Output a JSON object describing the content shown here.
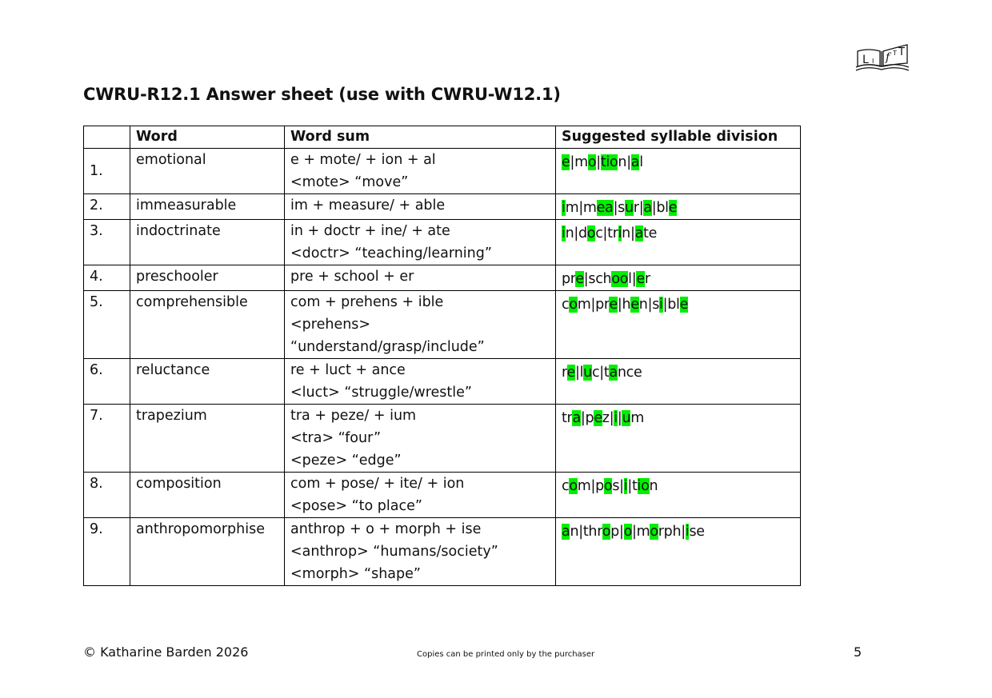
{
  "title": "CWRU-R12.1 Answer sheet (use with CWRU-W12.1)",
  "logo": {
    "icon": "lift-book-logo",
    "text_left": "L I",
    "text_right": "f T T"
  },
  "table": {
    "headers": [
      "",
      "Word",
      "Word sum",
      "Suggested syllable division"
    ],
    "rows": [
      {
        "num": "1.",
        "word": "emotional",
        "sum": [
          "e + mote/ + ion + al",
          "<mote> “move”"
        ],
        "syllables": [
          [
            "e",
            "v"
          ],
          [
            "|",
            ""
          ],
          [
            "m",
            ""
          ],
          [
            "o",
            "v"
          ],
          [
            "|",
            ""
          ],
          [
            "tio",
            "v"
          ],
          [
            "n",
            ""
          ],
          [
            "|",
            ""
          ],
          [
            "a",
            "v"
          ],
          [
            "l",
            ""
          ]
        ]
      },
      {
        "num": "2.",
        "word": "immeasurable",
        "sum": [
          "im + measure/ + able"
        ],
        "syllables": [
          [
            "i",
            "v"
          ],
          [
            "m",
            ""
          ],
          [
            "|",
            ""
          ],
          [
            "m",
            ""
          ],
          [
            "ea",
            "v"
          ],
          [
            "|",
            ""
          ],
          [
            "s",
            ""
          ],
          [
            "u",
            "v"
          ],
          [
            "r",
            ""
          ],
          [
            "|",
            ""
          ],
          [
            "a",
            "v"
          ],
          [
            "|",
            ""
          ],
          [
            "bl",
            ""
          ],
          [
            "e",
            "v"
          ]
        ]
      },
      {
        "num": "3.",
        "word": "indoctrinate",
        "sum": [
          "in + doctr + ine/ + ate",
          "<doctr> “teaching/learning”"
        ],
        "syllables": [
          [
            "i",
            "v"
          ],
          [
            "n",
            ""
          ],
          [
            "|",
            ""
          ],
          [
            "d",
            ""
          ],
          [
            "o",
            "v"
          ],
          [
            "c",
            ""
          ],
          [
            "|",
            ""
          ],
          [
            "tr",
            ""
          ],
          [
            "i",
            "v"
          ],
          [
            "n",
            ""
          ],
          [
            "|",
            ""
          ],
          [
            "a",
            "v"
          ],
          [
            "te",
            ""
          ]
        ]
      },
      {
        "num": "4.",
        "word": "preschooler",
        "sum": [
          "pre + school + er"
        ],
        "syllables": [
          [
            "pr",
            ""
          ],
          [
            "e",
            "v"
          ],
          [
            "|",
            ""
          ],
          [
            "sch",
            ""
          ],
          [
            "oo",
            "v"
          ],
          [
            "l",
            ""
          ],
          [
            "|",
            ""
          ],
          [
            "e",
            "v"
          ],
          [
            "r",
            ""
          ]
        ]
      },
      {
        "num": "5.",
        "word": "comprehensible",
        "sum": [
          "com + prehens + ible",
          "<prehens>",
          "“understand/grasp/include”"
        ],
        "syllables": [
          [
            "c",
            ""
          ],
          [
            "o",
            "v"
          ],
          [
            "m",
            ""
          ],
          [
            "|",
            ""
          ],
          [
            "pr",
            ""
          ],
          [
            "e",
            "v"
          ],
          [
            "|",
            ""
          ],
          [
            "h",
            ""
          ],
          [
            "e",
            "v"
          ],
          [
            "n",
            ""
          ],
          [
            "|",
            ""
          ],
          [
            "s",
            ""
          ],
          [
            "i",
            "v"
          ],
          [
            "|",
            ""
          ],
          [
            "bl",
            ""
          ],
          [
            "e",
            "v"
          ]
        ]
      },
      {
        "num": "6.",
        "word": "reluctance",
        "sum": [
          "re + luct + ance",
          "<luct> “struggle/wrestle”"
        ],
        "syllables": [
          [
            "r",
            ""
          ],
          [
            "e",
            "v"
          ],
          [
            "|",
            ""
          ],
          [
            "l",
            ""
          ],
          [
            "u",
            "v"
          ],
          [
            "c",
            ""
          ],
          [
            "|",
            ""
          ],
          [
            "t",
            ""
          ],
          [
            "a",
            "v"
          ],
          [
            "nce",
            ""
          ]
        ]
      },
      {
        "num": "7.",
        "word": "trapezium",
        "sum": [
          "tra + peze/ + ium",
          "<tra> “four”",
          "<peze> “edge”"
        ],
        "syllables": [
          [
            "tr",
            ""
          ],
          [
            "a",
            "v"
          ],
          [
            "|",
            ""
          ],
          [
            "p",
            ""
          ],
          [
            "e",
            "v"
          ],
          [
            "z",
            ""
          ],
          [
            "|",
            ""
          ],
          [
            "i",
            "v"
          ],
          [
            "|",
            ""
          ],
          [
            "u",
            "v"
          ],
          [
            "m",
            ""
          ]
        ]
      },
      {
        "num": "8.",
        "word": "composition",
        "sum": [
          "com + pose/ + ite/ + ion",
          "<pose> “to place”"
        ],
        "syllables": [
          [
            "c",
            ""
          ],
          [
            "o",
            "v"
          ],
          [
            "m",
            ""
          ],
          [
            "|",
            ""
          ],
          [
            "p",
            ""
          ],
          [
            "o",
            "v"
          ],
          [
            "s",
            ""
          ],
          [
            "|",
            ""
          ],
          [
            "i",
            "v"
          ],
          [
            "|",
            ""
          ],
          [
            "t",
            ""
          ],
          [
            "io",
            "v"
          ],
          [
            "n",
            ""
          ]
        ]
      },
      {
        "num": "9.",
        "word": "anthropomorphise",
        "sum": [
          "anthrop + o + morph + ise",
          "<anthrop> “humans/society”",
          "<morph> “shape”"
        ],
        "syllables": [
          [
            "a",
            "v"
          ],
          [
            "n",
            ""
          ],
          [
            "|",
            ""
          ],
          [
            "thr",
            ""
          ],
          [
            "o",
            "v"
          ],
          [
            "p",
            ""
          ],
          [
            "|",
            ""
          ],
          [
            "o",
            "v"
          ],
          [
            "|",
            ""
          ],
          [
            "m",
            ""
          ],
          [
            "o",
            "v"
          ],
          [
            "rph",
            ""
          ],
          [
            "|",
            ""
          ],
          [
            "i",
            "v"
          ],
          [
            "se",
            ""
          ]
        ]
      }
    ]
  },
  "footer": {
    "copyright": "© Katharine Barden 2026",
    "notice": "Copies can be printed only by the purchaser",
    "page_number": "5"
  },
  "colors": {
    "vowel_highlight": "#00ee00",
    "text": "#111111",
    "border": "#000000"
  }
}
